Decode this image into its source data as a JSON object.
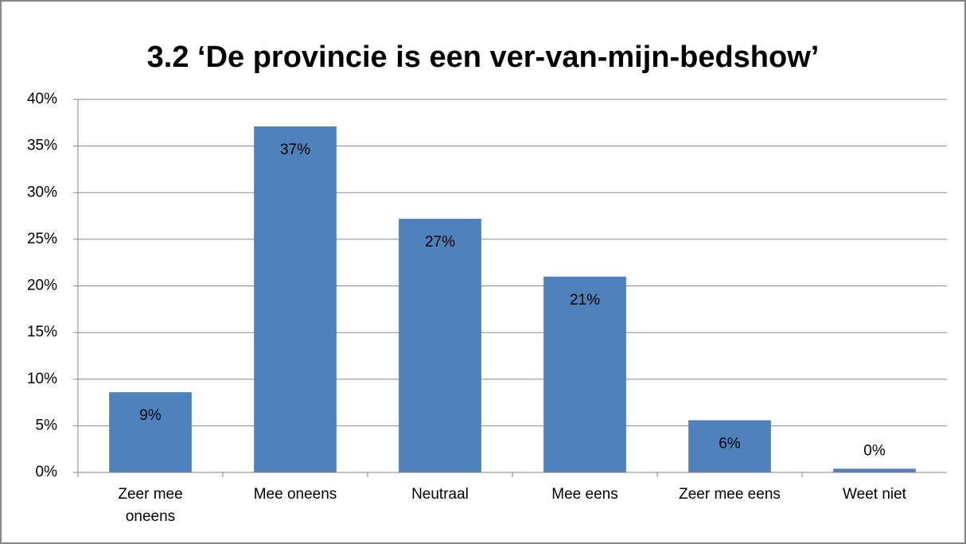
{
  "chart_data": {
    "type": "bar",
    "title": "3.2 ‘De provincie is een ver-van-mijn-bedshow’",
    "categories": [
      "Zeer mee oneens",
      "Mee oneens",
      "Neutraal",
      "Mee eens",
      "Zeer mee eens",
      "Weet niet"
    ],
    "values": [
      8.6,
      37.1,
      27.2,
      21.0,
      5.6,
      0.4
    ],
    "value_labels": [
      "9%",
      "37%",
      "27%",
      "21%",
      "6%",
      "0%"
    ],
    "color": "#4f81bd",
    "ylim": [
      0,
      40
    ],
    "yticks": [
      {
        "value": 0,
        "label": "0%"
      },
      {
        "value": 5,
        "label": "5%"
      },
      {
        "value": 10,
        "label": "10%"
      },
      {
        "value": 15,
        "label": "15%"
      },
      {
        "value": 20,
        "label": "20%"
      },
      {
        "value": 25,
        "label": "25%"
      },
      {
        "value": 30,
        "label": "30%"
      },
      {
        "value": 35,
        "label": "35%"
      },
      {
        "value": 40,
        "label": "40%"
      }
    ],
    "grid": true
  }
}
